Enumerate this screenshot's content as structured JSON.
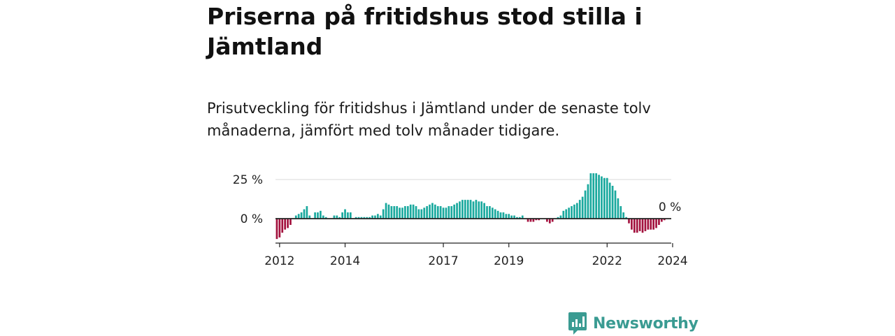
{
  "header": {
    "title": "Priserna på fritidshus stod stilla i Jämtland",
    "subtitle": "Prisutveckling för fritidshus i Jämtland under de senaste tolv månaderna, jämfört med tolv månader tidigare."
  },
  "brand": {
    "name": "Newsworthy",
    "color": "#3a9b92"
  },
  "colors": {
    "positive": "#1aa99e",
    "negative": "#a3123e",
    "baseline": "#222222",
    "grid": "#d9d9d9"
  },
  "chart_data": {
    "type": "bar",
    "title": "",
    "xlabel": "",
    "ylabel": "",
    "ylim": [
      -14,
      30
    ],
    "y_ticks": [
      {
        "value": 25,
        "label": "25 %"
      },
      {
        "value": 0,
        "label": "0 %"
      }
    ],
    "x_ticks": [
      {
        "value": "2012-01",
        "label": "2012"
      },
      {
        "value": "2014-01",
        "label": "2014"
      },
      {
        "value": "2017-01",
        "label": "2017"
      },
      {
        "value": "2019-01",
        "label": "2019"
      },
      {
        "value": "2022-01",
        "label": "2022"
      },
      {
        "value": "2024-01",
        "label": "2024"
      }
    ],
    "grid": true,
    "last_value_label": "0 %",
    "series": [
      {
        "start": "2011-12",
        "frequency": "monthly",
        "values": [
          -13,
          -12,
          -9,
          -7,
          -6,
          -4,
          0,
          2,
          3,
          4,
          6,
          8,
          2,
          0,
          4,
          4,
          5,
          2,
          1,
          0,
          0,
          2,
          2,
          1,
          4,
          6,
          4,
          4,
          0,
          1,
          1,
          1,
          1,
          1,
          1,
          2,
          2,
          3,
          2,
          6,
          10,
          9,
          8,
          8,
          8,
          7,
          7,
          8,
          8,
          9,
          9,
          8,
          6,
          6,
          7,
          8,
          9,
          10,
          9,
          8,
          8,
          7,
          7,
          8,
          8,
          9,
          10,
          11,
          12,
          12,
          12,
          12,
          11,
          12,
          11,
          11,
          10,
          8,
          8,
          7,
          6,
          5,
          4,
          4,
          3,
          3,
          2,
          2,
          1,
          1,
          2,
          0,
          -2,
          -2,
          -2,
          -1,
          -1,
          0,
          0,
          -2,
          -3,
          -2,
          0,
          1,
          2,
          5,
          6,
          7,
          8,
          9,
          10,
          12,
          14,
          18,
          22,
          29,
          29,
          29,
          28,
          27,
          26,
          26,
          23,
          21,
          18,
          13,
          8,
          4,
          1,
          -3,
          -7,
          -9,
          -9,
          -8,
          -9,
          -8,
          -7,
          -7,
          -7,
          -6,
          -4,
          -2,
          -1,
          0,
          0
        ]
      }
    ]
  }
}
